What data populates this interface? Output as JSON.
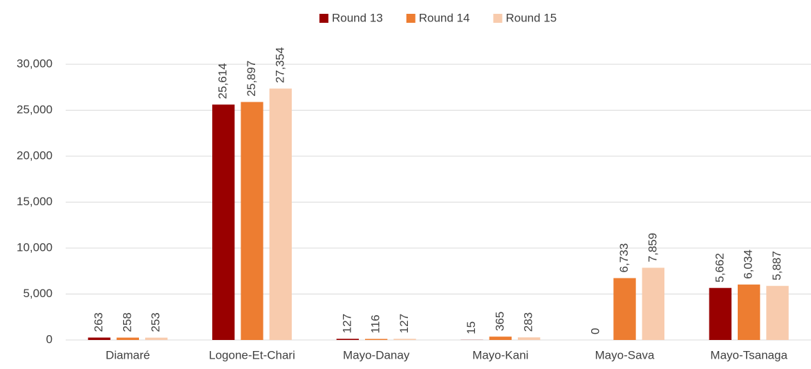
{
  "chart_data": {
    "type": "bar",
    "categories": [
      "Diamaré",
      "Logone-Et-Chari",
      "Mayo-Danay",
      "Mayo-Kani",
      "Mayo-Sava",
      "Mayo-Tsanaga"
    ],
    "series": [
      {
        "name": "Round 13",
        "color": "#990000",
        "values": [
          263,
          25614,
          127,
          15,
          0,
          5662
        ],
        "value_labels": [
          "263",
          "25,614",
          "127",
          "15",
          "0",
          "5,662"
        ]
      },
      {
        "name": "Round 14",
        "color": "#ed7d31",
        "values": [
          258,
          25897,
          116,
          365,
          6733,
          6034
        ],
        "value_labels": [
          "258",
          "25,897",
          "116",
          "365",
          "6,733",
          "6,034"
        ]
      },
      {
        "name": "Round 15",
        "color": "#f8cbad",
        "values": [
          253,
          27354,
          127,
          283,
          7859,
          5887
        ],
        "value_labels": [
          "253",
          "27,354",
          "127",
          "283",
          "7,859",
          "5,887"
        ]
      }
    ],
    "ylim": [
      0,
      30000
    ],
    "yticks": [
      0,
      {
        "value": 5000,
        "label": "5,000"
      },
      {
        "value": 10000,
        "label": "10,000"
      },
      {
        "value": 15000,
        "label": "15,000"
      },
      {
        "value": 20000,
        "label": "20,000"
      },
      {
        "value": 25000,
        "label": "25,000"
      },
      {
        "value": 30000,
        "label": "30,000"
      }
    ],
    "grid": true,
    "legend": "top"
  }
}
